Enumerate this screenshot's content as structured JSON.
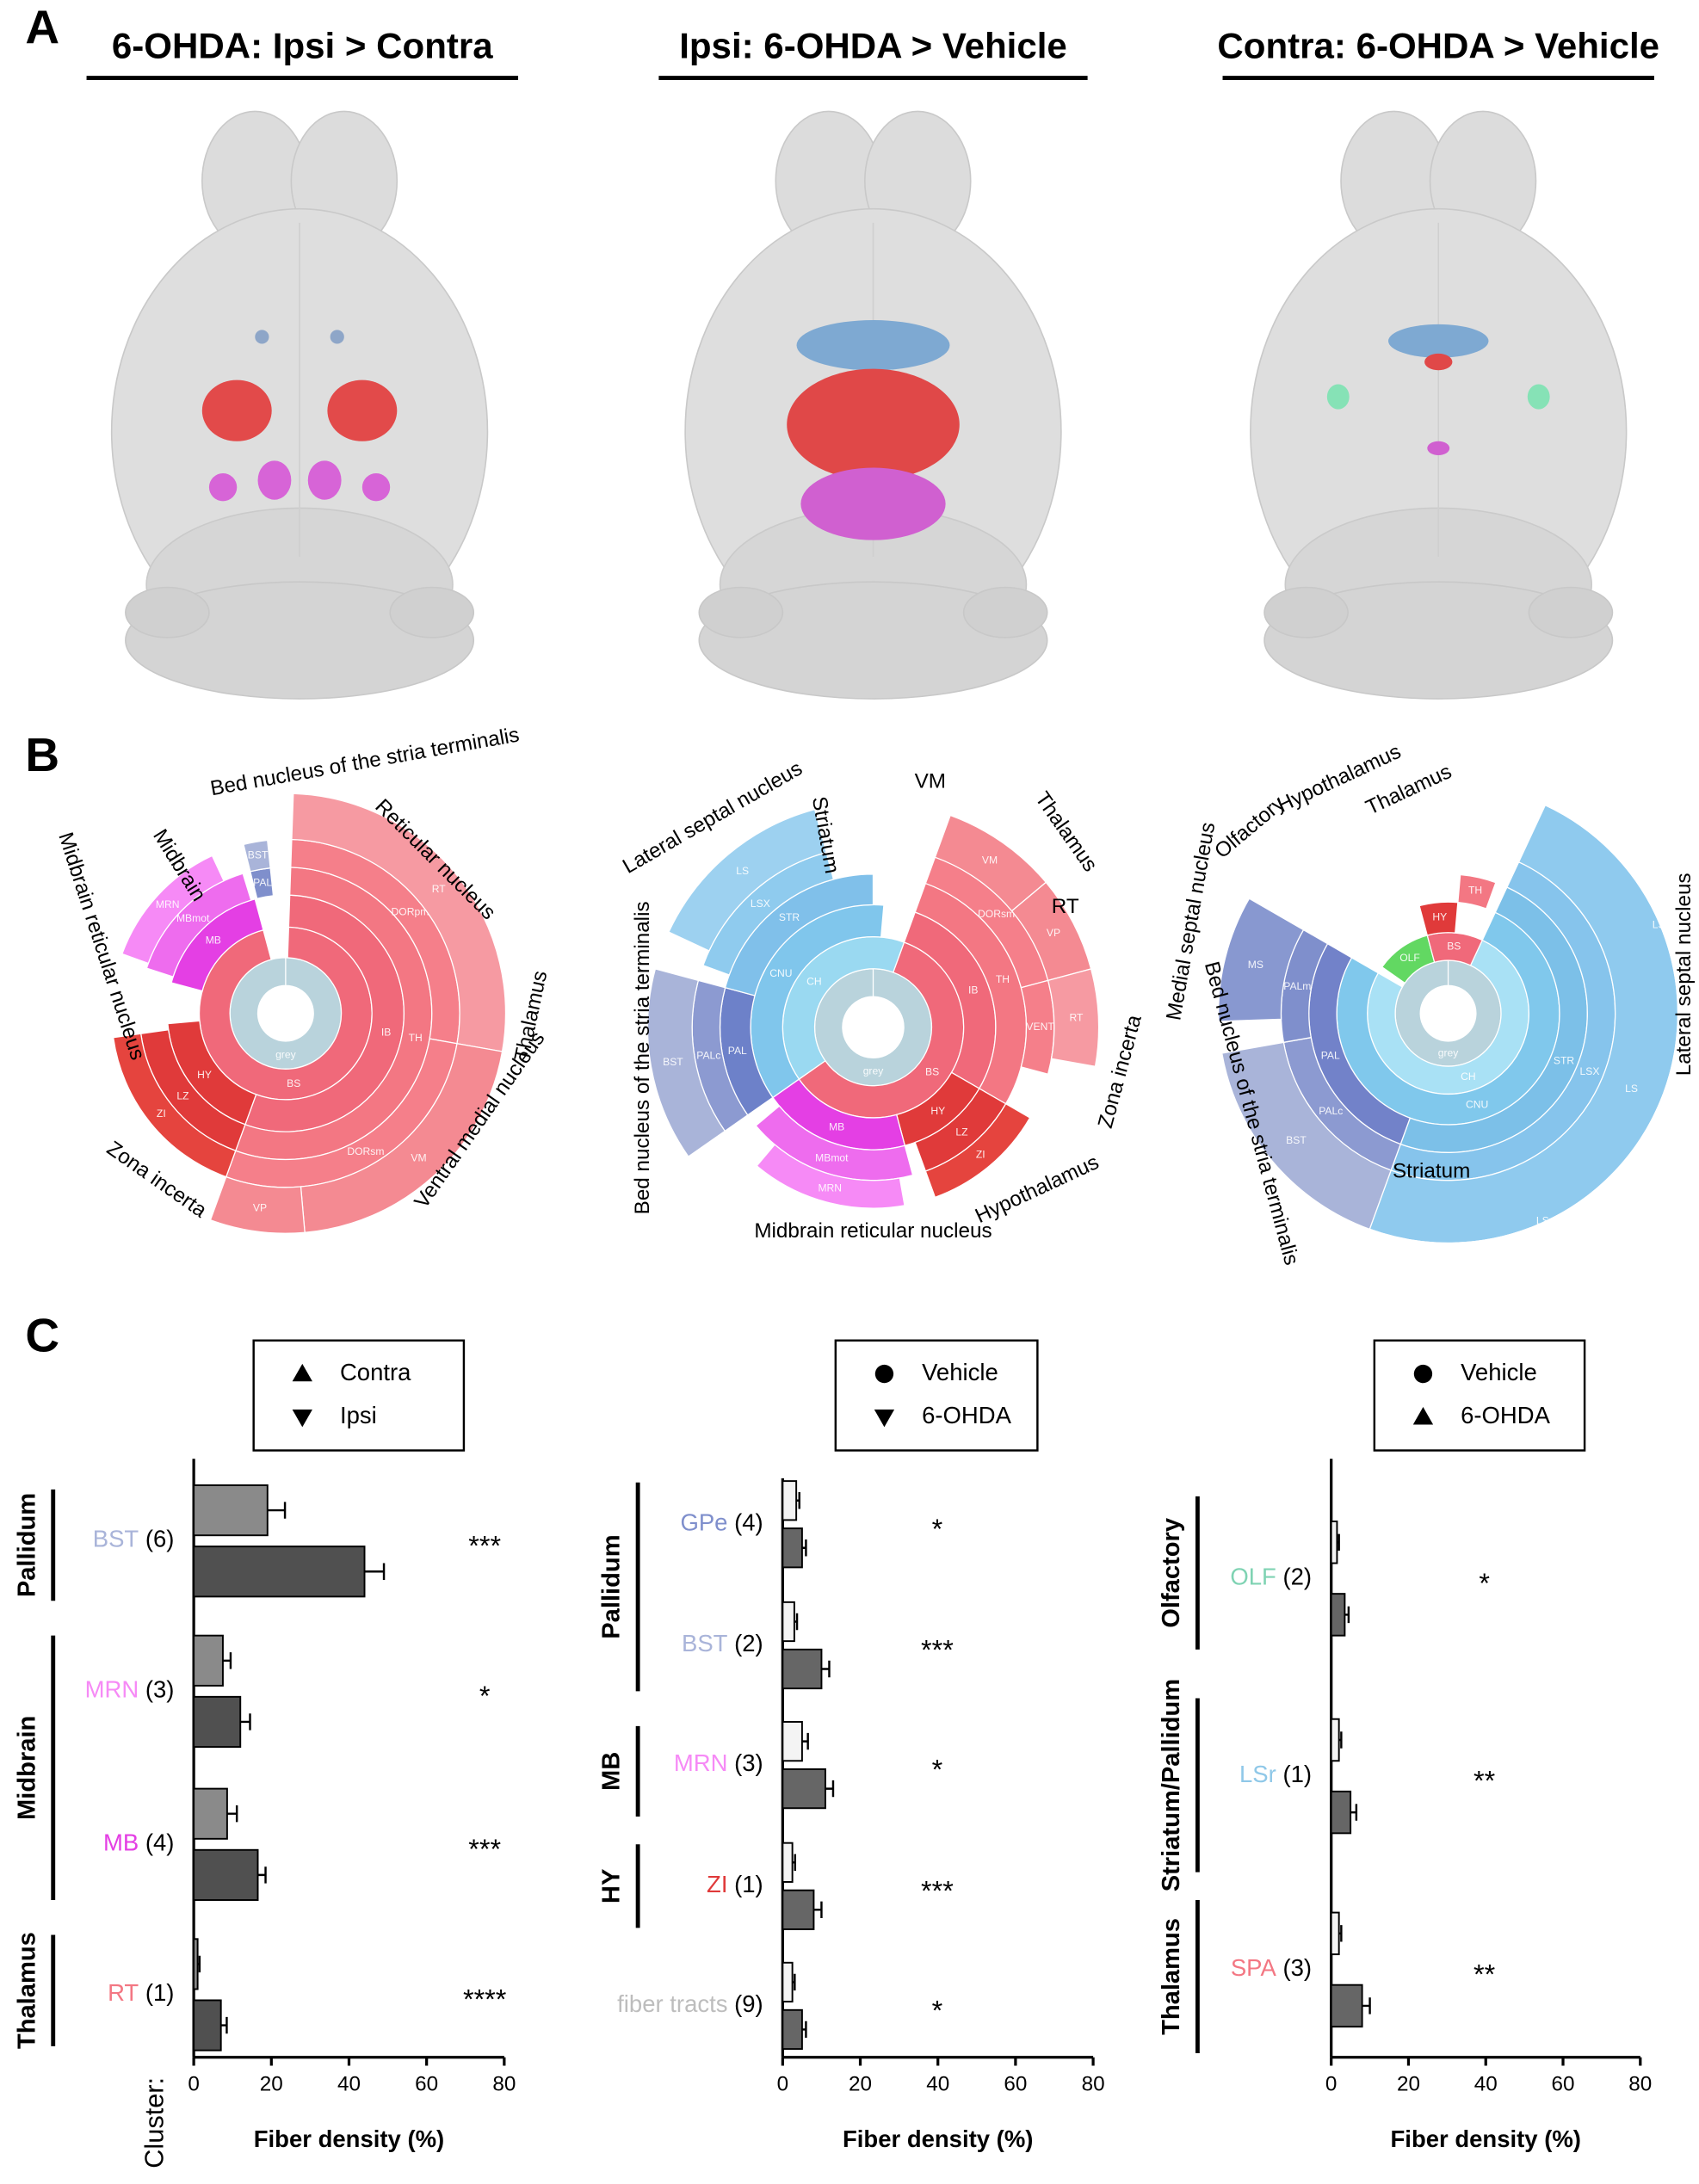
{
  "panel_labels": [
    "A",
    "B",
    "C"
  ],
  "panel_a": {
    "titles": [
      "6-OHDA: Ipsi > Contra",
      "Ipsi: 6-OHDA > Vehicle",
      "Contra: 6-OHDA > Vehicle"
    ]
  },
  "chart_data": [
    {
      "type": "sunburst",
      "segments": [
        {
          "label": "grey",
          "ring": 0,
          "start": 0,
          "span": 360,
          "color": "#b9d3dc"
        },
        {
          "label": "BS",
          "ring": 1,
          "start": 2,
          "span": 343,
          "color": "#f0697a"
        },
        {
          "label": "IB",
          "ring": 2,
          "start": 2,
          "span": 198,
          "color": "#f0697a"
        },
        {
          "label": "HY",
          "ring": 2,
          "start": 200,
          "span": 65,
          "color": "#e03a3a"
        },
        {
          "label": "MB",
          "ring": 2,
          "start": 285,
          "span": 60,
          "color": "#e43fe4"
        },
        {
          "label": "TH",
          "ring": 3,
          "start": 2,
          "span": 198,
          "color": "#f37783"
        },
        {
          "label": "LZ",
          "ring": 3,
          "start": 200,
          "span": 62,
          "color": "#e03a3a"
        },
        {
          "label": "MBmot",
          "ring": 3,
          "start": 288,
          "span": 55,
          "color": "#ee6cee"
        },
        {
          "label": "PAL",
          "ring": 3,
          "start": 346,
          "span": 8,
          "color": "#7f8fcc"
        },
        {
          "label": "DORpm",
          "ring": 4,
          "start": 2,
          "span": 98,
          "color": "#f57f8a"
        },
        {
          "label": "DORsm",
          "ring": 4,
          "start": 100,
          "span": 100,
          "color": "#f57f8a"
        },
        {
          "label": "ZI",
          "ring": 4,
          "start": 200,
          "span": 62,
          "color": "#e5443e"
        },
        {
          "label": "MRN",
          "ring": 4,
          "start": 290,
          "span": 45,
          "color": "#f68af6"
        },
        {
          "label": "BST",
          "ring": 4,
          "start": 346,
          "span": 8,
          "color": "#a9b4d9"
        },
        {
          "label": "RT",
          "ring": 5,
          "start": 2,
          "span": 98,
          "color": "#f69aa2"
        },
        {
          "label": "VM",
          "ring": 5,
          "start": 100,
          "span": 75,
          "color": "#f48a92"
        },
        {
          "label": "VP",
          "ring": 5,
          "start": 175,
          "span": 25,
          "color": "#f48a92"
        }
      ],
      "annotations": [
        "Bed nucleus of the stria terminalis",
        "Reticular nucleus",
        "Thalamus",
        "Ventral medial nucleus",
        "Zona incerta",
        "Midbrain reticular nucleus",
        "Midbrain"
      ]
    },
    {
      "type": "sunburst",
      "segments": [
        {
          "label": "grey",
          "ring": 0,
          "start": 0,
          "span": 360,
          "color": "#b9d3dc"
        },
        {
          "label": "BS",
          "ring": 1,
          "start": 20,
          "span": 215,
          "color": "#f0697a"
        },
        {
          "label": "CH",
          "ring": 1,
          "start": 235,
          "span": 145,
          "color": "#9ad9f1"
        },
        {
          "label": "IB",
          "ring": 2,
          "start": 20,
          "span": 100,
          "color": "#f0697a"
        },
        {
          "label": "HY",
          "ring": 2,
          "start": 120,
          "span": 45,
          "color": "#e03a3a"
        },
        {
          "label": "MB",
          "ring": 2,
          "start": 165,
          "span": 70,
          "color": "#e43fe4"
        },
        {
          "label": "CNU",
          "ring": 2,
          "start": 235,
          "span": 130,
          "color": "#80c6ec"
        },
        {
          "label": "TH",
          "ring": 3,
          "start": 20,
          "span": 100,
          "color": "#f37783"
        },
        {
          "label": "LZ",
          "ring": 3,
          "start": 120,
          "span": 40,
          "color": "#e03a3a"
        },
        {
          "label": "MBmot",
          "ring": 3,
          "start": 165,
          "span": 65,
          "color": "#ee6cee"
        },
        {
          "label": "PAL",
          "ring": 3,
          "start": 235,
          "span": 50,
          "color": "#6d81c9"
        },
        {
          "label": "STR",
          "ring": 3,
          "start": 285,
          "span": 75,
          "color": "#80c0ea"
        },
        {
          "label": "DORsm",
          "ring": 4,
          "start": 20,
          "span": 55,
          "color": "#f57f8a"
        },
        {
          "label": "VENT",
          "ring": 4,
          "start": 75,
          "span": 30,
          "color": "#f57f8a"
        },
        {
          "label": "ZI",
          "ring": 4,
          "start": 120,
          "span": 40,
          "color": "#e5443e"
        },
        {
          "label": "MRN",
          "ring": 4,
          "start": 170,
          "span": 50,
          "color": "#f68af6"
        },
        {
          "label": "PALc",
          "ring": 4,
          "start": 235,
          "span": 50,
          "color": "#8c9ad1"
        },
        {
          "label": "LSX",
          "ring": 4,
          "start": 290,
          "span": 55,
          "color": "#8fcbee"
        },
        {
          "label": "VM",
          "ring": 5,
          "start": 20,
          "span": 30,
          "color": "#f48a92"
        },
        {
          "label": "VP",
          "ring": 5,
          "start": 50,
          "span": 25,
          "color": "#f48a92"
        },
        {
          "label": "RT",
          "ring": 5,
          "start": 75,
          "span": 25,
          "color": "#f69aa2"
        },
        {
          "label": "BST",
          "ring": 5,
          "start": 235,
          "span": 50,
          "color": "#a9b4d9"
        },
        {
          "label": "LS",
          "ring": 5,
          "start": 295,
          "span": 50,
          "color": "#9dd1f0"
        }
      ],
      "annotations": [
        "Lateral septal nucleus",
        "Striatum",
        "VM",
        "Thalamus",
        "RT",
        "Bed nucleus of the stria terminalis",
        "Zona incerta",
        "Hypothalamus",
        "Midbrain reticular nucleus"
      ]
    },
    {
      "type": "sunburst",
      "segments": [
        {
          "label": "grey",
          "ring": 0,
          "start": 0,
          "span": 360,
          "color": "#b9d3dc"
        },
        {
          "label": "CH",
          "ring": 1,
          "start": 25,
          "span": 275,
          "color": "#a9e1f5"
        },
        {
          "label": "OLF",
          "ring": 1,
          "start": 305,
          "span": 40,
          "color": "#62d862"
        },
        {
          "label": "BS",
          "ring": 1,
          "start": 345,
          "span": 40,
          "color": "#f0697a"
        },
        {
          "label": "CNU",
          "ring": 2,
          "start": 25,
          "span": 275,
          "color": "#80c8ec"
        },
        {
          "label": "HY",
          "ring": 2,
          "start": 345,
          "span": 20,
          "color": "#e03a3a"
        },
        {
          "label": "STR",
          "ring": 3,
          "start": 25,
          "span": 175,
          "color": "#7cc0e8"
        },
        {
          "label": "PAL",
          "ring": 3,
          "start": 200,
          "span": 100,
          "color": "#7282c9"
        },
        {
          "label": "TH",
          "ring": 3,
          "start": 5,
          "span": 15,
          "color": "#f37783"
        },
        {
          "label": "LSX",
          "ring": 4,
          "start": 25,
          "span": 175,
          "color": "#86c4ec"
        },
        {
          "label": "PALc",
          "ring": 4,
          "start": 200,
          "span": 60,
          "color": "#8c9ad1"
        },
        {
          "label": "PALm",
          "ring": 4,
          "start": 260,
          "span": 40,
          "color": "#7f8fcc"
        },
        {
          "label": "LS",
          "ring": 5,
          "start": 25,
          "span": 175,
          "color": "#8fcaee"
        },
        {
          "label": "BST",
          "ring": 5,
          "start": 200,
          "span": 60,
          "color": "#a9b4d9"
        },
        {
          "label": "MS",
          "ring": 5,
          "start": 268,
          "span": 32,
          "color": "#8898d0"
        },
        {
          "label": "LSr",
          "ring": 6,
          "start": 25,
          "span": 85,
          "color": "#95cdef"
        },
        {
          "label": "LSv",
          "ring": 6,
          "start": 110,
          "span": 90,
          "color": "#95cdef"
        }
      ],
      "annotations": [
        "Olfactory",
        "Hypothalamus",
        "Thalamus",
        "Medial septal nucleus",
        "Lateral septal nucleus",
        "Bed nucleus of the stria terminalis",
        "Striatum"
      ]
    },
    {
      "type": "bar",
      "orientation": "horizontal",
      "categories": [
        "BST",
        "MRN",
        "MB",
        "RT"
      ],
      "category_colors": [
        "#a9b4d9",
        "#f68af6",
        "#e43fe4",
        "#f37783"
      ],
      "category_notes": [
        "(6)",
        "(3)",
        "(4)",
        "(1)"
      ],
      "group_labels": [
        "Pallidum",
        "Midbrain",
        "Thalamus"
      ],
      "significance": [
        "***",
        "*",
        "***",
        "****"
      ],
      "series": [
        {
          "name": "Contra",
          "marker": "triangle-up",
          "color": "#8a8a8a",
          "values": [
            19,
            7.5,
            8.6,
            1
          ],
          "errors": [
            4.5,
            2,
            2.5,
            0.5
          ]
        },
        {
          "name": "Ipsi",
          "marker": "triangle-down",
          "color": "#505050",
          "values": [
            44,
            12,
            16.5,
            7
          ],
          "errors": [
            5,
            2.5,
            2,
            1.5
          ]
        }
      ],
      "xlim": [
        0,
        80
      ],
      "xticks": [
        0,
        20,
        40,
        60,
        80
      ],
      "xlabel": "Fiber density (%)",
      "ylabel": "Cluster:"
    },
    {
      "type": "bar",
      "orientation": "horizontal",
      "categories": [
        "GPe",
        "BST",
        "MRN",
        "ZI",
        "fiber tracts"
      ],
      "category_colors": [
        "#7f8fcc",
        "#a9b4d9",
        "#f68af6",
        "#e03a3a",
        "#bdbdbd"
      ],
      "category_notes": [
        "(4)",
        "(2)",
        "(3)",
        "(1)",
        "(9)"
      ],
      "group_labels": [
        "Pallidum",
        "MB",
        "HY"
      ],
      "significance": [
        "*",
        "***",
        "*",
        "***",
        "*"
      ],
      "series": [
        {
          "name": "Vehicle",
          "marker": "circle",
          "color": "#f4f4f4",
          "values": [
            3.5,
            3,
            5,
            2.5,
            2.5
          ],
          "errors": [
            0.8,
            0.7,
            1.5,
            0.7,
            0.6
          ]
        },
        {
          "name": "6-OHDA",
          "marker": "triangle-down",
          "color": "#666666",
          "values": [
            5,
            10,
            11,
            8,
            5
          ],
          "errors": [
            1,
            2,
            2,
            2,
            1
          ]
        }
      ],
      "xlim": [
        0,
        80
      ],
      "xticks": [
        0,
        20,
        40,
        60,
        80
      ],
      "xlabel": "Fiber density (%)"
    },
    {
      "type": "bar",
      "orientation": "horizontal",
      "categories": [
        "OLF",
        "LSr",
        "SPA"
      ],
      "category_colors": [
        "#7fd3b3",
        "#8fc8e8",
        "#f37783"
      ],
      "category_notes": [
        "(2)",
        "(1)",
        "(3)"
      ],
      "group_labels": [
        "Olfactory",
        "Striatum/Pallidum",
        "Thalamus"
      ],
      "significance": [
        "*",
        "**",
        "**"
      ],
      "series": [
        {
          "name": "Vehicle",
          "marker": "circle",
          "color": "#f4f4f4",
          "values": [
            1.5,
            2,
            2
          ],
          "errors": [
            0.5,
            0.6,
            0.6
          ]
        },
        {
          "name": "6-OHDA",
          "marker": "triangle-up",
          "color": "#666666",
          "values": [
            3.5,
            5,
            8
          ],
          "errors": [
            1,
            1.5,
            2
          ]
        }
      ],
      "xlim": [
        0,
        80
      ],
      "xticks": [
        0,
        20,
        40,
        60,
        80
      ],
      "xlabel": "Fiber density (%)"
    }
  ]
}
